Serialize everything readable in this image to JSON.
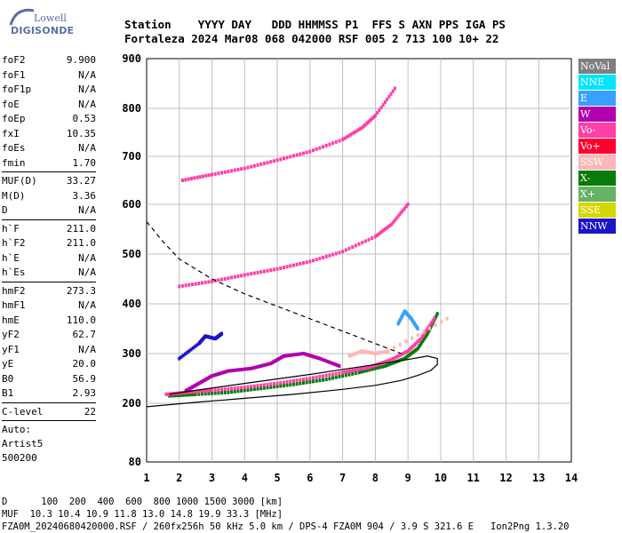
{
  "logo": {
    "line1": "Lowell",
    "line2": "DIGISONDE"
  },
  "header": {
    "line1": "Station    YYYY DAY   DDD HHMMSS P1  FFS S AXN PPS IGA PS",
    "line2": "Fortaleza 2024 Mar08 068 042000 RSF 005 2 713 100 10+ 22"
  },
  "params": [
    {
      "k": "foF2",
      "v": "9.900"
    },
    {
      "k": "foF1",
      "v": "N/A"
    },
    {
      "k": "foF1p",
      "v": "N/A"
    },
    {
      "k": "foE",
      "v": "N/A"
    },
    {
      "k": "foEp",
      "v": "0.53"
    },
    {
      "k": "fxI",
      "v": "10.35"
    },
    {
      "k": "foEs",
      "v": "N/A"
    },
    {
      "k": "fmin",
      "v": "1.70"
    }
  ],
  "params2": [
    {
      "k": "MUF(D)",
      "v": "33.27"
    },
    {
      "k": "M(D)",
      "v": "3.36"
    },
    {
      "k": "D",
      "v": "N/A"
    }
  ],
  "params3": [
    {
      "k": "h`F",
      "v": "211.0"
    },
    {
      "k": "h`F2",
      "v": "211.0"
    },
    {
      "k": "h`E",
      "v": "N/A"
    },
    {
      "k": "h`Es",
      "v": "N/A"
    }
  ],
  "params4": [
    {
      "k": "hmF2",
      "v": "273.3"
    },
    {
      "k": "hmF1",
      "v": "N/A"
    },
    {
      "k": "hmE",
      "v": "110.0"
    },
    {
      "k": "yF2",
      "v": "62.7"
    },
    {
      "k": "yF1",
      "v": "N/A"
    },
    {
      "k": "yE",
      "v": "20.0"
    },
    {
      "k": "B0",
      "v": "56.9"
    },
    {
      "k": "B1",
      "v": "2.93"
    }
  ],
  "params5": [
    {
      "k": "C-level",
      "v": "22"
    }
  ],
  "auto": {
    "l1": "Auto:",
    "l2": "Artist5",
    "l3": "500200"
  },
  "legend": [
    {
      "label": "NoVal",
      "color": "#7f7f7f"
    },
    {
      "label": "NNE",
      "color": "#00e5ff"
    },
    {
      "label": "E",
      "color": "#3aa0ff"
    },
    {
      "label": "W",
      "color": "#b000b0"
    },
    {
      "label": "Vo-",
      "color": "#ff3fa6"
    },
    {
      "label": "Vo+",
      "color": "#ff0030"
    },
    {
      "label": "SSW",
      "color": "#ffb6b6"
    },
    {
      "label": "X-",
      "color": "#0a7a0a"
    },
    {
      "label": "X+",
      "color": "#66b266"
    },
    {
      "label": "SSE",
      "color": "#d7d700"
    },
    {
      "label": "NNW",
      "color": "#1a14c8"
    }
  ],
  "footer": {
    "l1": "D      100  200  400  600  800 1000 1500 3000 [km]",
    "l2": "MUF  10.3 10.4 10.9 11.8 13.0 14.8 19.9 33.3 [MHz]",
    "l3": "FZA0M_20240680420000.RSF / 260fx256h 50 kHz 5.0 km / DPS-4 FZA0M 904 / 3.9 S 321.6 E   Ion2Png 1.3.20"
  },
  "chart_data": {
    "type": "scatter",
    "xlim": [
      1,
      14
    ],
    "ylim": [
      80,
      900
    ],
    "x_ticks": [
      1,
      2,
      3,
      4,
      5,
      6,
      7,
      8,
      9,
      10,
      11,
      12,
      13,
      14
    ],
    "y_ticks": [
      80,
      200,
      300,
      400,
      500,
      600,
      700,
      800,
      900
    ],
    "grid": true,
    "series": [
      {
        "name": "X-",
        "color": "#0a7a0a",
        "x": [
          1.7,
          2.5,
          3.5,
          4.5,
          5.5,
          6.5,
          7.5,
          8.3,
          8.9,
          9.3,
          9.6,
          9.9
        ],
        "y": [
          215,
          218,
          222,
          230,
          238,
          248,
          262,
          275,
          290,
          310,
          340,
          380
        ]
      },
      {
        "name": "Vo-",
        "color": "#ff3fa6",
        "x": [
          1.6,
          2.2,
          3.0,
          4.0,
          5.0,
          6.0,
          7.0,
          7.8,
          8.5,
          9.0,
          9.4,
          9.8
        ],
        "y": [
          218,
          222,
          226,
          232,
          240,
          250,
          262,
          272,
          288,
          305,
          330,
          370
        ]
      },
      {
        "name": "W",
        "color": "#b000b0",
        "x": [
          2.2,
          2.6,
          3.0,
          3.5,
          4.2,
          4.8,
          5.2,
          5.8,
          6.3,
          6.9
        ],
        "y": [
          225,
          240,
          255,
          265,
          270,
          280,
          295,
          300,
          290,
          275
        ]
      },
      {
        "name": "NNW",
        "color": "#1a14c8",
        "x": [
          2.0,
          2.6,
          2.8,
          3.1,
          3.3
        ],
        "y": [
          290,
          320,
          335,
          330,
          340
        ]
      },
      {
        "name": "E",
        "color": "#3aa0ff",
        "x": [
          8.7,
          8.9,
          9.1,
          9.3
        ],
        "y": [
          360,
          385,
          370,
          350
        ]
      },
      {
        "name": "SSW",
        "color": "#ffb6b6",
        "x": [
          7.2,
          7.6,
          8.0,
          8.4,
          10.2
        ],
        "y": [
          295,
          305,
          300,
          305,
          370
        ]
      },
      {
        "name": "F2 2nd hop",
        "color": "#ff3fa6",
        "x": [
          2.0,
          3.0,
          4.0,
          5.0,
          6.0,
          7.0,
          8.0,
          8.5,
          9.0
        ],
        "y": [
          435,
          445,
          458,
          470,
          485,
          505,
          535,
          560,
          600
        ]
      },
      {
        "name": "F2 3rd hop",
        "color": "#ff3fa6",
        "x": [
          2.1,
          3.0,
          4.0,
          5.0,
          6.0,
          7.0,
          7.6,
          8.0,
          8.6
        ],
        "y": [
          650,
          662,
          675,
          692,
          710,
          735,
          760,
          785,
          840
        ]
      }
    ],
    "curves": [
      {
        "name": "profile",
        "style": "solid",
        "x": [
          1.0,
          2.5,
          4.0,
          5.5,
          7.0,
          8.0,
          8.8,
          9.3,
          9.7,
          9.9,
          9.9,
          9.6,
          9.0,
          8.0,
          6.0,
          4.0,
          2.5,
          1.7
        ],
        "y": [
          193,
          202,
          210,
          218,
          228,
          236,
          246,
          256,
          266,
          278,
          290,
          295,
          288,
          278,
          258,
          240,
          226,
          218
        ]
      },
      {
        "name": "MUF dashed",
        "style": "dashed",
        "x": [
          1.0,
          1.5,
          2.0,
          3.0,
          4.0,
          5.0,
          6.0,
          7.0,
          8.0,
          8.8
        ],
        "y": [
          565,
          525,
          490,
          450,
          420,
          395,
          370,
          345,
          320,
          300
        ]
      }
    ]
  }
}
